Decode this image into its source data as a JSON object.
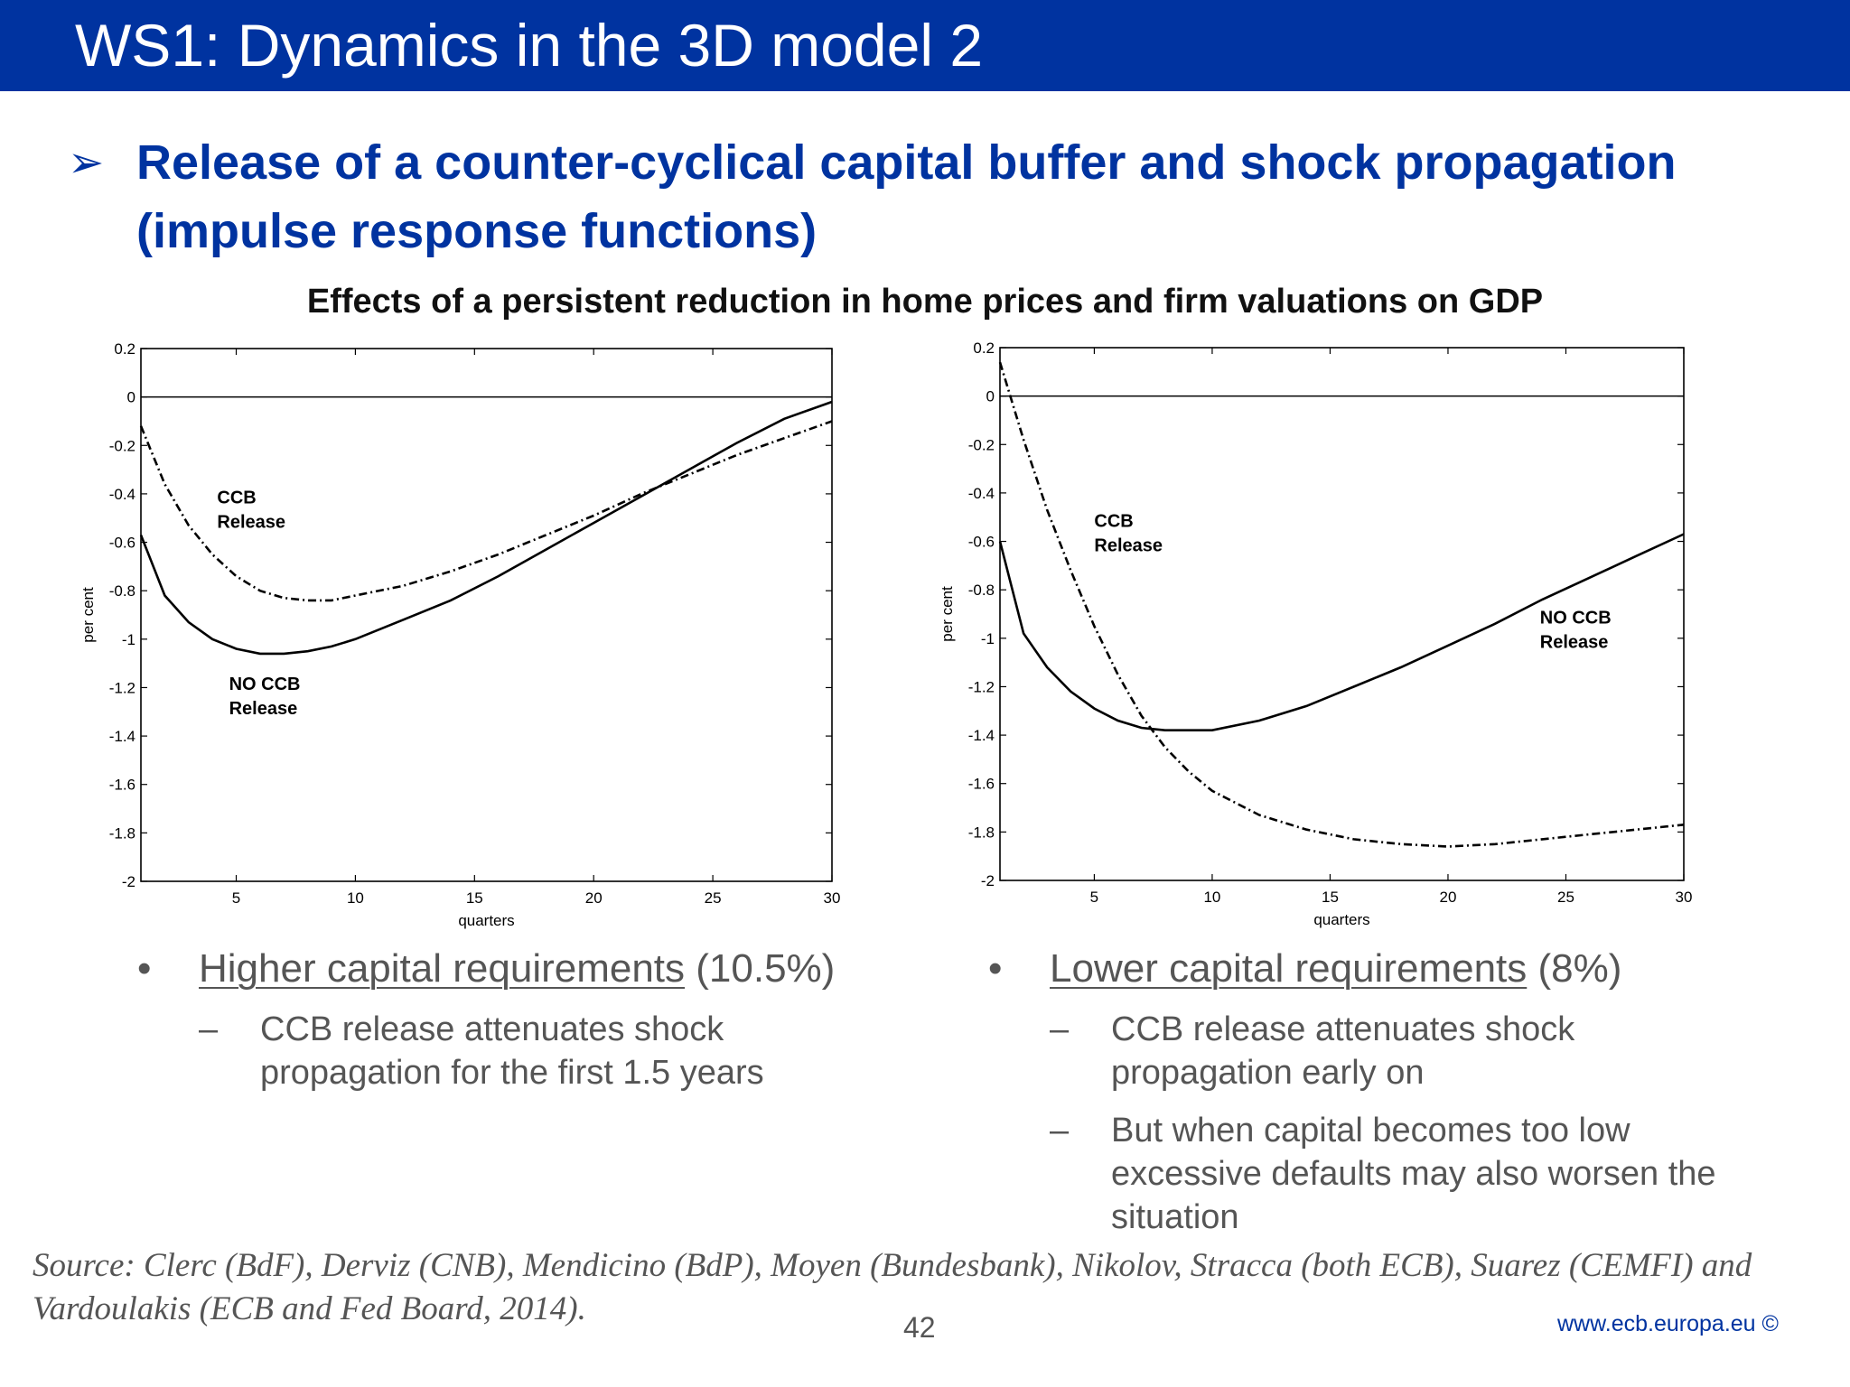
{
  "header": {
    "title": "WS1: Dynamics in the 3D model 2"
  },
  "lead": {
    "bullet_icon": "arrow-bullet-icon",
    "text": "Release of a counter-cyclical capital buffer and shock propagation (impulse response functions)"
  },
  "figure_title": "Effects of a persistent reduction in home prices and firm valuations on GDP",
  "chart_data": [
    {
      "type": "line",
      "title": "",
      "xlabel": "quarters",
      "ylabel": "per cent",
      "xlim": [
        1,
        30
      ],
      "ylim": [
        -2,
        0.2
      ],
      "x_ticks": [
        5,
        10,
        15,
        20,
        25,
        30
      ],
      "y_ticks": [
        0.2,
        0,
        -0.2,
        -0.4,
        -0.6,
        -0.8,
        -1,
        -1.2,
        -1.4,
        -1.6,
        -1.8,
        -2
      ],
      "y_tick_labels": [
        "0.2",
        "0",
        "-0.2",
        "-0.4",
        "-0.6",
        "-0.8",
        "-1",
        "-1.2",
        "-1.4",
        "-1.6",
        "-1.8",
        "-2"
      ],
      "grid": false,
      "zero_line": true,
      "annotations": [
        {
          "text": "CCB",
          "x": 4.2,
          "y": -0.44
        },
        {
          "text": "Release",
          "x": 4.2,
          "y": -0.54
        },
        {
          "text": "NO CCB",
          "x": 4.7,
          "y": -1.21
        },
        {
          "text": "Release",
          "x": 4.7,
          "y": -1.31
        }
      ],
      "series": [
        {
          "style": "dash-dot",
          "x": [
            1,
            2,
            3,
            4,
            5,
            6,
            7,
            8,
            9,
            10,
            12,
            14,
            16,
            18,
            20,
            22,
            24,
            26,
            28,
            30
          ],
          "y": [
            -0.12,
            -0.36,
            -0.53,
            -0.65,
            -0.74,
            -0.8,
            -0.83,
            -0.84,
            -0.84,
            -0.82,
            -0.78,
            -0.72,
            -0.65,
            -0.57,
            -0.49,
            -0.4,
            -0.32,
            -0.24,
            -0.17,
            -0.1
          ]
        },
        {
          "style": "solid",
          "x": [
            1,
            2,
            3,
            4,
            5,
            6,
            7,
            8,
            9,
            10,
            12,
            14,
            16,
            18,
            20,
            22,
            24,
            26,
            28,
            30
          ],
          "y": [
            -0.57,
            -0.82,
            -0.93,
            -1.0,
            -1.04,
            -1.06,
            -1.06,
            -1.05,
            -1.03,
            -1.0,
            -0.92,
            -0.84,
            -0.74,
            -0.63,
            -0.52,
            -0.41,
            -0.3,
            -0.19,
            -0.09,
            -0.02
          ]
        }
      ]
    },
    {
      "type": "line",
      "title": "",
      "xlabel": "quarters",
      "ylabel": "per cent",
      "xlim": [
        1,
        30
      ],
      "ylim": [
        -2,
        0.2
      ],
      "x_ticks": [
        5,
        10,
        15,
        20,
        25,
        30
      ],
      "y_ticks": [
        0.2,
        0,
        -0.2,
        -0.4,
        -0.6,
        -0.8,
        -1,
        -1.2,
        -1.4,
        -1.6,
        -1.8,
        -2
      ],
      "y_tick_labels": [
        "0.2",
        "0",
        "-0.2",
        "-0.4",
        "-0.6",
        "-0.8",
        "-1",
        "-1.2",
        "-1.4",
        "-1.6",
        "-1.8",
        "-2"
      ],
      "grid": false,
      "zero_line": true,
      "annotations": [
        {
          "text": "CCB",
          "x": 5.0,
          "y": -0.54
        },
        {
          "text": "Release",
          "x": 5.0,
          "y": -0.64
        },
        {
          "text": "NO CCB",
          "x": 23.9,
          "y": -0.94
        },
        {
          "text": "Release",
          "x": 23.9,
          "y": -1.04
        }
      ],
      "series": [
        {
          "style": "dash-dot",
          "x": [
            1,
            2,
            3,
            4,
            5,
            6,
            7,
            8,
            9,
            10,
            12,
            14,
            16,
            18,
            20,
            22,
            24,
            26,
            28,
            30
          ],
          "y": [
            0.14,
            -0.18,
            -0.47,
            -0.72,
            -0.95,
            -1.15,
            -1.32,
            -1.45,
            -1.55,
            -1.63,
            -1.73,
            -1.79,
            -1.83,
            -1.85,
            -1.86,
            -1.85,
            -1.83,
            -1.81,
            -1.79,
            -1.77
          ]
        },
        {
          "style": "solid",
          "x": [
            1,
            2,
            3,
            4,
            5,
            6,
            7,
            8,
            9,
            10,
            12,
            14,
            16,
            18,
            20,
            22,
            24,
            26,
            28,
            30
          ],
          "y": [
            -0.6,
            -0.98,
            -1.12,
            -1.22,
            -1.29,
            -1.34,
            -1.37,
            -1.38,
            -1.38,
            -1.38,
            -1.34,
            -1.28,
            -1.2,
            -1.12,
            -1.03,
            -0.94,
            -0.84,
            -0.75,
            -0.66,
            -0.57
          ]
        }
      ]
    }
  ],
  "left_column": {
    "bullet": "•",
    "heading_underlined": "Higher capital requirements",
    "heading_rest": " (10.5%)",
    "subs": [
      {
        "dash": "–",
        "text": "CCB release attenuates shock propagation for the first 1.5 years"
      }
    ]
  },
  "right_column": {
    "bullet": "•",
    "heading_underlined": "Lower capital requirements",
    "heading_rest": " (8%)",
    "subs": [
      {
        "dash": "–",
        "text": "CCB release attenuates shock propagation early on"
      },
      {
        "dash": "–",
        "text": "But when capital becomes too low excessive defaults may also worsen the situation"
      }
    ]
  },
  "source": "Source: Clerc (BdF), Derviz (CNB), Mendicino (BdP), Moyen (Bundesbank), Nikolov, Stracca (both ECB), Suarez (CEMFI) and Vardoulakis (ECB and Fed Board, 2014).",
  "page_number": "42",
  "footer_url": "www.ecb.europa.eu ©"
}
